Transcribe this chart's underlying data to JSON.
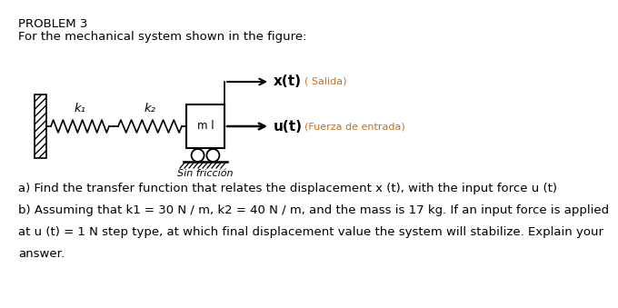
{
  "title": "PROBLEM 3",
  "line1": "For the mechanical system shown in the figure:",
  "label_k1": "k₁",
  "label_k2": "k₂",
  "label_m": "m l",
  "label_xt": "x(t)",
  "label_salida": "( Salida)",
  "label_ut": "u(t)",
  "label_fuerza": "(Fuerza de entrada)",
  "label_sin": "Sin fricción",
  "text_a": "a) Find the transfer function that relates the displacement x (t), with the input force u (t)",
  "text_b1": "b) Assuming that k1 = 30 N / m, k2 = 40 N / m, and the mass is 17 kg. If an input force is applied",
  "text_b2": "at u (t) = 1 N step type, at which final displacement value the system will stabilize. Explain your",
  "text_b3": "answer.",
  "bg_color": "#ffffff",
  "text_color": "#000000",
  "orange_color": "#c87020",
  "title_fontsize": 9.5,
  "body_fontsize": 9.5,
  "diagram_fontsize": 9.5
}
